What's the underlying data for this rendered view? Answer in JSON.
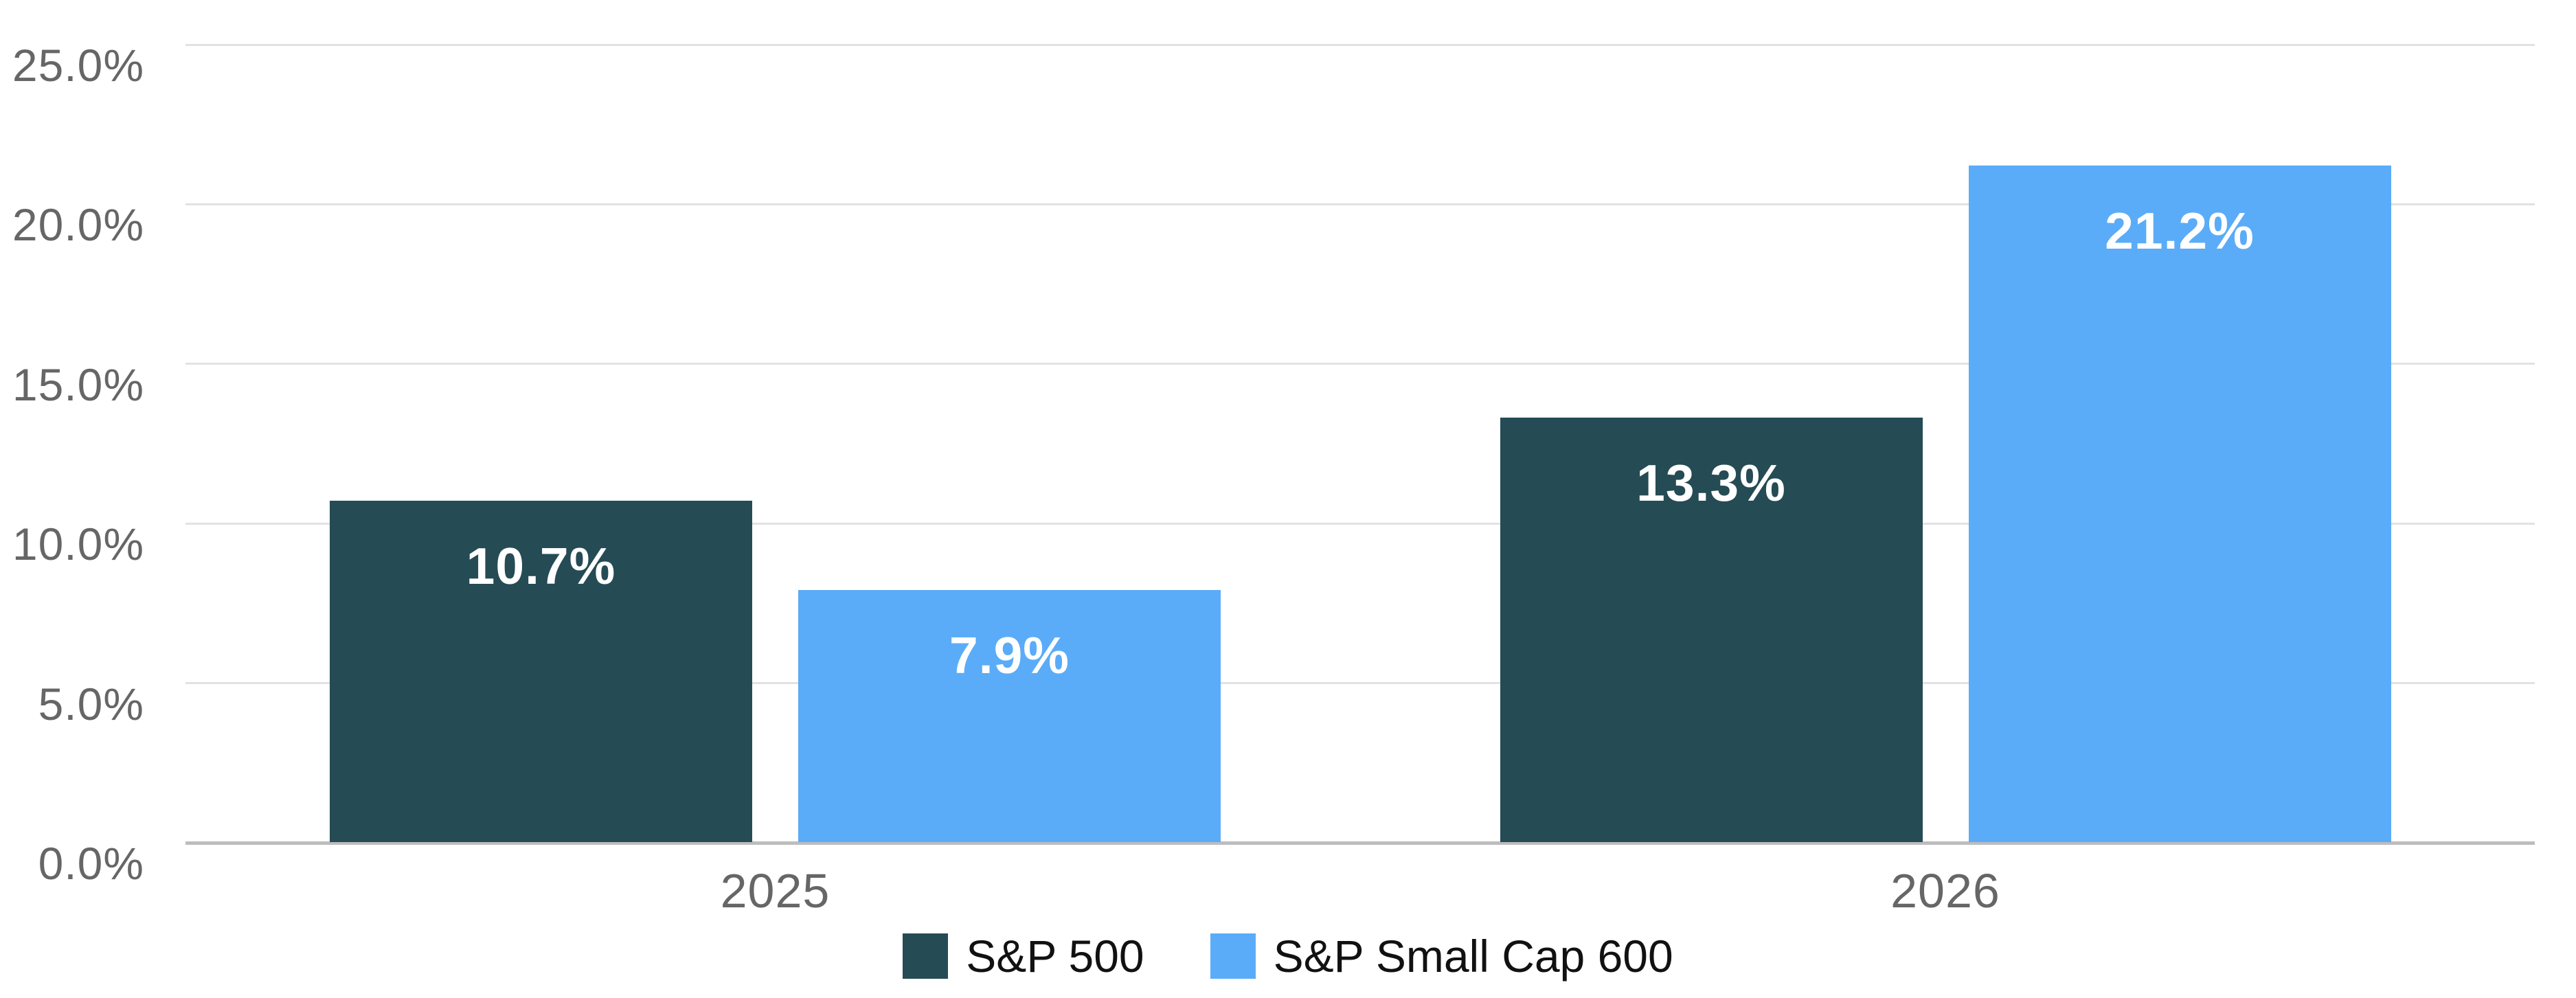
{
  "chart_data": {
    "type": "bar",
    "title": "",
    "xlabel": "",
    "ylabel": "",
    "categories": [
      "2025",
      "2026"
    ],
    "series": [
      {
        "name": "S&P 500",
        "color": "#254B55",
        "values": [
          10.7,
          13.3
        ],
        "labels": [
          "10.7%",
          "13.3%"
        ]
      },
      {
        "name": "S&P Small Cap 600",
        "color": "#5AACF8",
        "values": [
          7.9,
          21.2
        ],
        "labels": [
          "7.9%",
          "21.2%"
        ]
      }
    ],
    "ylim": [
      0,
      25
    ],
    "y_ticks": [
      {
        "value": 0,
        "label": "0.0%"
      },
      {
        "value": 5,
        "label": "5.0%"
      },
      {
        "value": 10,
        "label": "10.0%"
      },
      {
        "value": 15,
        "label": "15.0%"
      },
      {
        "value": 20,
        "label": "20.0%"
      },
      {
        "value": 25,
        "label": "25.0%"
      }
    ],
    "grid": true,
    "legend_position": "bottom",
    "data_label_color": "#FFFFFF",
    "axis_text_color": "#666666",
    "gridline_color": "#E2E2E2",
    "zero_line_color": "#BDBDBD",
    "background_color": "#FFFFFF"
  }
}
